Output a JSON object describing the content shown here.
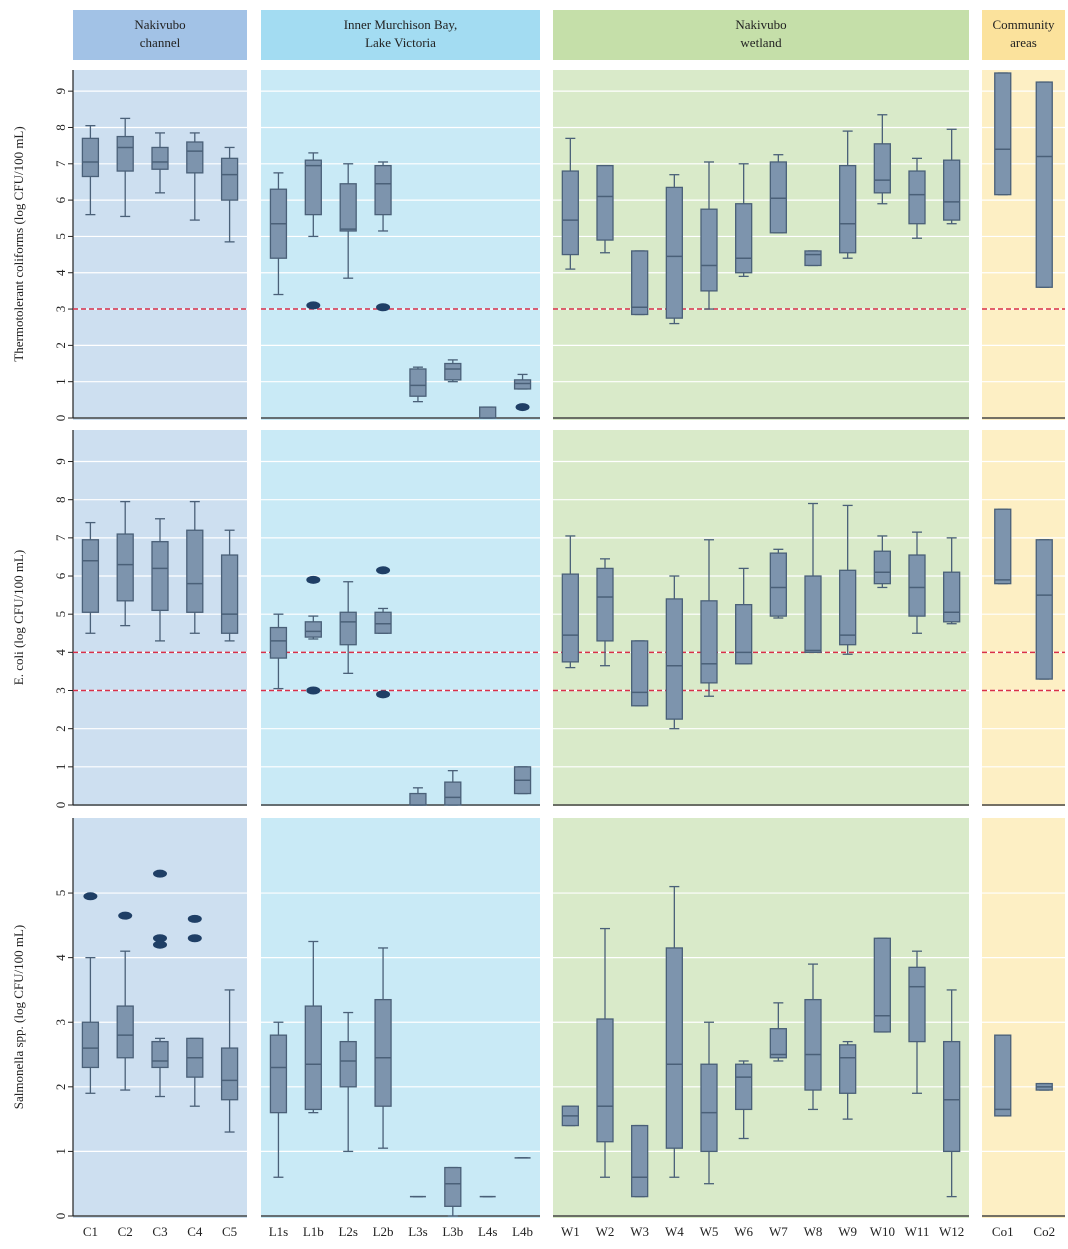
{
  "chart_data": {
    "type": "box",
    "box_color": "#7d94ad",
    "box_stroke": "#4a6078",
    "outlier_color": "#1f3f66",
    "reference_line_color": "#d9304a",
    "grid": true,
    "groups": [
      {
        "title": [
          "Nakivubo",
          "channel"
        ],
        "panel_color": "#cddff0",
        "header_color": "#a2c2e6",
        "categories": [
          "C1",
          "C2",
          "C3",
          "C4",
          "C5"
        ]
      },
      {
        "title": [
          "Inner Murchison Bay,",
          "Lake Victoria"
        ],
        "panel_color": "#c9eaf6",
        "header_color": "#a3dcf2",
        "categories": [
          "L1s",
          "L1b",
          "L2s",
          "L2b",
          "L3s",
          "L3b",
          "L4s",
          "L4b"
        ]
      },
      {
        "title": [
          "Nakivubo",
          "wetland"
        ],
        "panel_color": "#d9eac9",
        "header_color": "#c5dfa9",
        "categories": [
          "W1",
          "W2",
          "W3",
          "W4",
          "W5",
          "W6",
          "W7",
          "W8",
          "W9",
          "W10",
          "W11",
          "W12"
        ]
      },
      {
        "title": [
          "Community",
          "areas"
        ],
        "panel_color": "#fdefc4",
        "header_color": "#fbe29c",
        "categories": [
          "Co1",
          "Co2"
        ]
      }
    ],
    "panels": [
      {
        "ylabel": "Thermotolerant coliforms (log CFU/100 mL)",
        "ylim": [
          0,
          9.5
        ],
        "yticks": [
          0,
          1,
          2,
          3,
          4,
          5,
          6,
          7,
          8,
          9
        ],
        "reference_lines": [
          3
        ],
        "boxes": [
          [
            [
              5.6,
              6.65,
              7.05,
              7.7,
              8.05
            ],
            [
              5.55,
              6.8,
              7.45,
              7.75,
              8.25
            ],
            [
              6.2,
              6.85,
              7.05,
              7.45,
              7.85
            ],
            [
              5.45,
              6.75,
              7.35,
              7.6,
              7.85
            ],
            [
              4.85,
              6.0,
              6.7,
              7.15,
              7.45
            ]
          ],
          [
            [
              3.4,
              4.4,
              5.35,
              6.3,
              6.75
            ],
            [
              5.0,
              5.6,
              6.95,
              7.1,
              7.3
            ],
            [
              3.85,
              5.15,
              5.2,
              6.45,
              7.0
            ],
            [
              5.15,
              5.6,
              6.45,
              6.95,
              7.05
            ],
            [
              0.45,
              0.6,
              0.9,
              1.35,
              1.4
            ],
            [
              1.0,
              1.05,
              1.35,
              1.5,
              1.6
            ],
            [
              0,
              0,
              0,
              0.3,
              0.3
            ],
            [
              0.8,
              0.8,
              0.95,
              1.05,
              1.2
            ]
          ],
          [
            [
              4.1,
              4.5,
              5.45,
              6.8,
              7.7
            ],
            [
              4.55,
              4.9,
              6.1,
              6.95,
              6.95
            ],
            [
              2.85,
              2.85,
              3.05,
              4.6,
              4.6
            ],
            [
              2.6,
              2.75,
              4.45,
              6.35,
              6.7
            ],
            [
              3.0,
              3.5,
              4.2,
              5.75,
              7.05
            ],
            [
              3.9,
              4.0,
              4.4,
              5.9,
              7.0
            ],
            [
              5.1,
              5.1,
              6.05,
              7.05,
              7.25
            ],
            [
              4.2,
              4.2,
              4.5,
              4.6,
              4.6
            ],
            [
              4.4,
              4.55,
              5.35,
              6.95,
              7.9
            ],
            [
              5.9,
              6.2,
              6.55,
              7.55,
              8.35
            ],
            [
              4.95,
              5.35,
              6.15,
              6.8,
              7.15
            ],
            [
              5.35,
              5.45,
              5.95,
              7.1,
              7.95
            ]
          ],
          [
            [
              6.15,
              6.15,
              7.4,
              9.5,
              9.5
            ],
            [
              3.6,
              3.6,
              7.2,
              9.25,
              9.25
            ]
          ]
        ],
        "outliers": [
          [
            [],
            [],
            [],
            [],
            []
          ],
          [
            [],
            [
              3.1
            ],
            [],
            [
              3.05
            ],
            [],
            [],
            [],
            [
              0.3
            ]
          ],
          [
            [],
            [],
            [],
            [],
            [],
            [],
            [],
            [],
            [],
            [],
            [],
            []
          ],
          [
            [],
            []
          ]
        ]
      },
      {
        "ylabel": "E. coli (log CFU/100 mL)",
        "ylim": [
          0,
          9.8
        ],
        "yticks": [
          0,
          1,
          2,
          3,
          4,
          5,
          6,
          7,
          8,
          9
        ],
        "reference_lines": [
          3,
          4
        ],
        "boxes": [
          [
            [
              4.5,
              5.05,
              6.4,
              6.95,
              7.4
            ],
            [
              4.7,
              5.35,
              6.3,
              7.1,
              7.95
            ],
            [
              4.3,
              5.1,
              6.2,
              6.9,
              7.5
            ],
            [
              4.5,
              5.05,
              5.8,
              7.2,
              7.95
            ],
            [
              4.3,
              4.5,
              5.0,
              6.55,
              7.2
            ]
          ],
          [
            [
              3.05,
              3.85,
              4.3,
              4.65,
              5.0
            ],
            [
              4.35,
              4.4,
              4.55,
              4.8,
              4.95
            ],
            [
              3.45,
              4.2,
              4.8,
              5.05,
              5.85
            ],
            [
              4.5,
              4.5,
              4.75,
              5.05,
              5.15
            ],
            [
              0,
              0,
              0,
              0.3,
              0.45
            ],
            [
              0,
              0,
              0.2,
              0.6,
              0.9
            ],
            null,
            [
              0.3,
              0.3,
              0.65,
              1.0,
              1.0
            ]
          ],
          [
            [
              3.6,
              3.75,
              4.45,
              6.05,
              7.05
            ],
            [
              3.65,
              4.3,
              5.45,
              6.2,
              6.45
            ],
            [
              2.6,
              2.6,
              2.95,
              4.3,
              4.3
            ],
            [
              2.0,
              2.25,
              3.65,
              5.4,
              6.0
            ],
            [
              2.85,
              3.2,
              3.7,
              5.35,
              6.95
            ],
            [
              3.7,
              3.7,
              4.0,
              5.25,
              6.2
            ],
            [
              4.9,
              4.95,
              5.7,
              6.6,
              6.7
            ],
            [
              4.0,
              4.0,
              4.05,
              6.0,
              7.9
            ],
            [
              3.95,
              4.2,
              4.45,
              6.15,
              7.85
            ],
            [
              5.7,
              5.8,
              6.1,
              6.65,
              7.05
            ],
            [
              4.5,
              4.95,
              5.7,
              6.55,
              7.15
            ],
            [
              4.75,
              4.8,
              5.05,
              6.1,
              7.0
            ]
          ],
          [
            [
              5.8,
              5.8,
              5.9,
              7.75,
              7.75
            ],
            [
              3.3,
              3.3,
              5.5,
              6.95,
              6.95
            ]
          ]
        ],
        "outliers": [
          [
            [],
            [],
            [],
            [],
            []
          ],
          [
            [],
            [
              5.9,
              3.0
            ],
            [],
            [
              6.15,
              2.9
            ],
            [],
            [],
            [],
            []
          ],
          [
            [],
            [],
            [],
            [],
            [],
            [],
            [],
            [],
            [],
            [],
            [],
            []
          ],
          [
            [],
            []
          ]
        ]
      },
      {
        "ylabel": "Salmonella spp. (log CFU/100 mL)",
        "ylim": [
          0,
          6.1
        ],
        "yticks": [
          0,
          1,
          2,
          3,
          4,
          5
        ],
        "reference_lines": [],
        "boxes": [
          [
            [
              1.9,
              2.3,
              2.6,
              3.0,
              4.0
            ],
            [
              1.95,
              2.45,
              2.8,
              3.25,
              4.1
            ],
            [
              1.85,
              2.3,
              2.4,
              2.7,
              2.75
            ],
            [
              1.7,
              2.15,
              2.45,
              2.75,
              2.75
            ],
            [
              1.3,
              1.8,
              2.1,
              2.6,
              3.5
            ]
          ],
          [
            [
              0.6,
              1.6,
              2.3,
              2.8,
              3.0
            ],
            [
              1.6,
              1.65,
              2.35,
              3.25,
              4.25
            ],
            [
              1.0,
              2.0,
              2.4,
              2.7,
              3.15
            ],
            [
              1.05,
              1.7,
              2.45,
              3.35,
              4.15
            ],
            [
              0.3,
              0.3,
              0.3,
              0.3,
              0.3
            ],
            [
              0,
              0.15,
              0.5,
              0.75,
              0.75
            ],
            [
              0.3,
              0.3,
              0.3,
              0.3,
              0.3
            ],
            [
              0.9,
              0.9,
              0.9,
              0.9,
              0.9
            ]
          ],
          [
            [
              1.4,
              1.4,
              1.55,
              1.7,
              1.7
            ],
            [
              0.6,
              1.15,
              1.7,
              3.05,
              4.45
            ],
            [
              0.3,
              0.3,
              0.6,
              1.4,
              1.4
            ],
            [
              0.6,
              1.05,
              2.35,
              4.15,
              5.1
            ],
            [
              0.5,
              1.0,
              1.6,
              2.35,
              3.0
            ],
            [
              1.2,
              1.65,
              2.15,
              2.35,
              2.4
            ],
            [
              2.4,
              2.45,
              2.5,
              2.9,
              3.3
            ],
            [
              1.65,
              1.95,
              2.5,
              3.35,
              3.9
            ],
            [
              1.5,
              1.9,
              2.45,
              2.65,
              2.7
            ],
            [
              2.85,
              2.85,
              3.1,
              4.3,
              4.3
            ],
            [
              1.9,
              2.7,
              3.55,
              3.85,
              4.1
            ],
            [
              0.3,
              1.0,
              1.8,
              2.7,
              3.5
            ]
          ],
          [
            [
              1.55,
              1.55,
              1.65,
              2.8,
              2.8
            ],
            [
              1.95,
              1.95,
              2.0,
              2.05,
              2.05
            ]
          ]
        ],
        "outliers": [
          [
            [
              4.95
            ],
            [
              4.65
            ],
            [
              5.3,
              4.3,
              4.2
            ],
            [
              4.6,
              4.3
            ],
            []
          ],
          [
            [],
            [],
            [],
            [],
            [],
            [],
            [],
            []
          ],
          [
            [],
            [],
            [],
            [],
            [],
            [],
            [],
            [],
            [],
            [],
            [],
            []
          ],
          [
            [],
            []
          ]
        ]
      }
    ]
  }
}
